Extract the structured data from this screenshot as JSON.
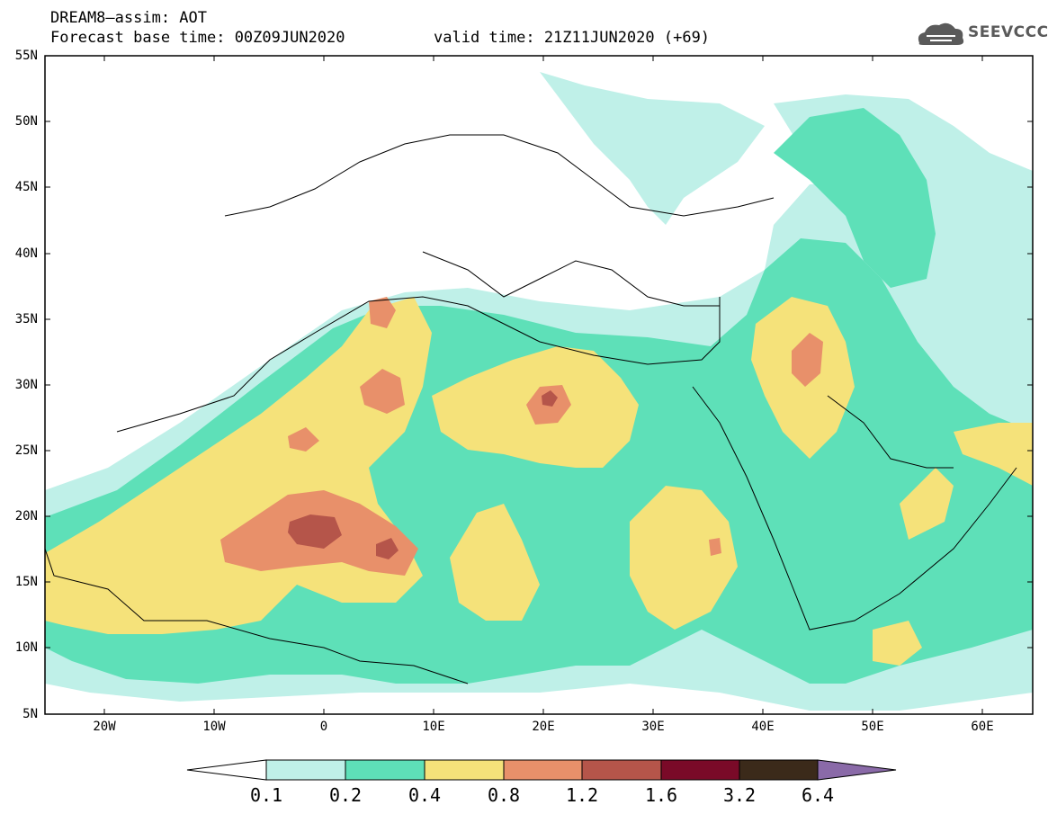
{
  "header": {
    "title_line1": "DREAM8–assim: AOT",
    "base_time": "Forecast base time: 00Z09JUN2020",
    "valid_time": "valid time: 21Z11JUN2020 (+69)",
    "logo_text": "SEEVCCC"
  },
  "map": {
    "lat_labels": [
      "55N",
      "50N",
      "45N",
      "40N",
      "35N",
      "30N",
      "25N",
      "20N",
      "15N",
      "10N",
      "5N"
    ],
    "lon_labels": [
      "20W",
      "10W",
      "0",
      "10E",
      "20E",
      "30E",
      "40E",
      "50E",
      "60E"
    ],
    "lon_range": [
      -25,
      65
    ],
    "lat_range": [
      5,
      55
    ]
  },
  "colorbar": {
    "labels": [
      "0.1",
      "0.2",
      "0.4",
      "0.8",
      "1.2",
      "1.6",
      "3.2",
      "6.4"
    ],
    "colors": [
      "#ffffff",
      "#bff0e8",
      "#5ee0b8",
      "#f5e27a",
      "#e8906a",
      "#b5554a",
      "#7a0a28",
      "#3b2a1a",
      "#8a6aa8"
    ]
  }
}
